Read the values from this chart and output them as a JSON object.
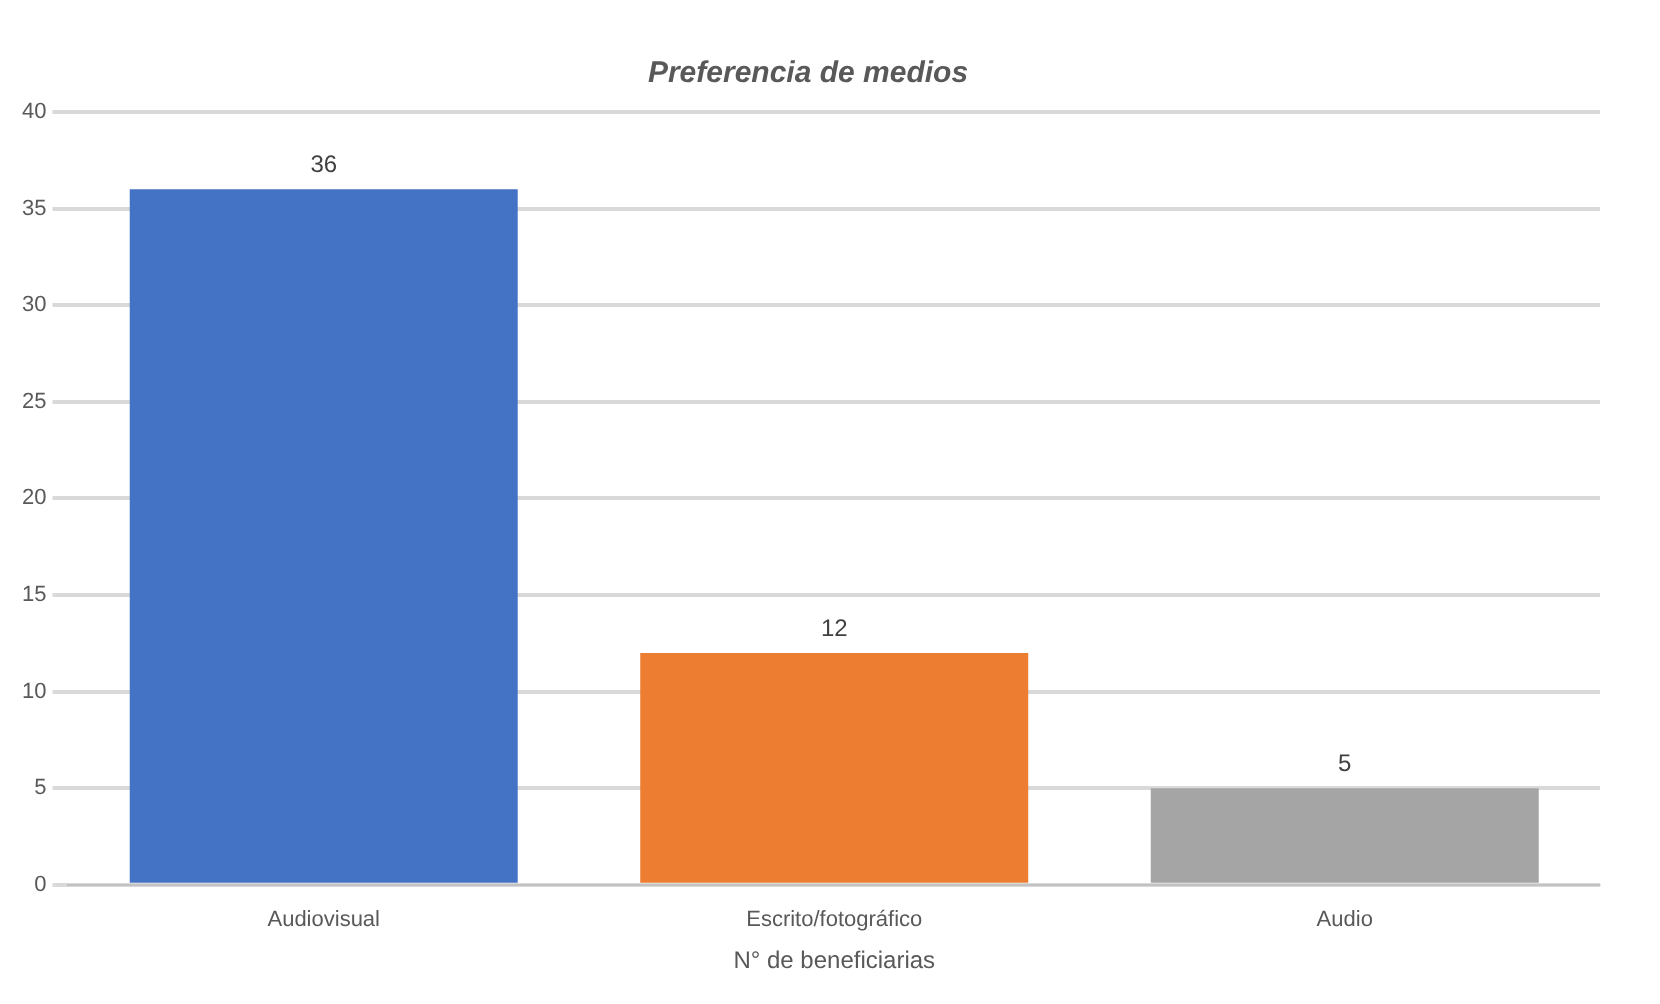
{
  "chart_data": {
    "type": "bar",
    "title": "Preferencia de medios",
    "xlabel": "N° de beneficiarias",
    "categories": [
      "Audiovisual",
      "Escrito/fotográfico",
      "Audio"
    ],
    "values": [
      36,
      12,
      5
    ],
    "colors": [
      "#4472c4",
      "#ed7d31",
      "#a5a5a5"
    ],
    "ylim": [
      0,
      40
    ],
    "yticks": [
      0,
      5,
      10,
      15,
      20,
      25,
      30,
      35,
      40
    ],
    "grid": "y",
    "data_labels": true
  }
}
